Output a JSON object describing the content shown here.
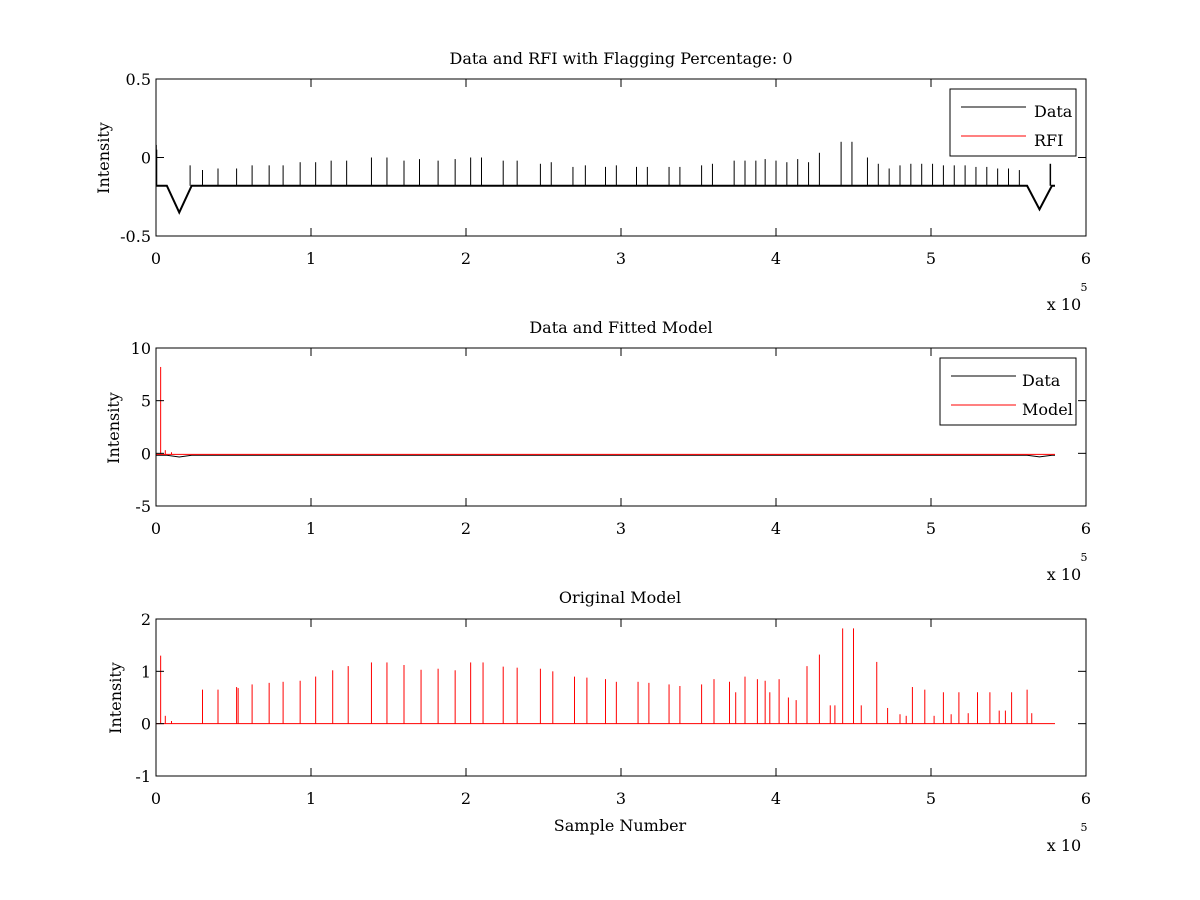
{
  "figure": {
    "background": "#ffffff"
  },
  "chart_data": [
    {
      "type": "line",
      "title": "Data and RFI with Flagging Percentage: 0",
      "xlabel": "",
      "ylabel": "Intensity",
      "xlim": [
        0,
        6
      ],
      "ylim": [
        -0.5,
        0.5
      ],
      "xticks": [
        "0",
        "1",
        "2",
        "3",
        "4",
        "5",
        "6"
      ],
      "yticks": [
        "-0.5",
        "0",
        "0.5"
      ],
      "ytick_values": [
        -0.5,
        0,
        0.5
      ],
      "x_multiplier": {
        "base": "x 10",
        "exp": "5"
      },
      "grid": false,
      "legend": {
        "placement": "top-right",
        "entries": [
          "Data",
          "RFI"
        ]
      },
      "series": [
        {
          "name": "Data",
          "color": "#000000",
          "baseline": -0.18,
          "spikes": [
            [
              0.002,
              0.08
            ],
            [
              0.005,
              0.05
            ],
            [
              0.22,
              -0.05
            ],
            [
              0.3,
              -0.08
            ],
            [
              0.4,
              -0.07
            ],
            [
              0.52,
              -0.07
            ],
            [
              0.62,
              -0.05
            ],
            [
              0.73,
              -0.05
            ],
            [
              0.82,
              -0.05
            ],
            [
              0.93,
              -0.03
            ],
            [
              1.03,
              -0.03
            ],
            [
              1.13,
              -0.02
            ],
            [
              1.23,
              -0.02
            ],
            [
              1.39,
              0.0
            ],
            [
              1.49,
              0.0
            ],
            [
              1.6,
              -0.02
            ],
            [
              1.7,
              -0.01
            ],
            [
              1.82,
              -0.02
            ],
            [
              1.93,
              -0.01
            ],
            [
              2.03,
              0.0
            ],
            [
              2.1,
              0.0
            ],
            [
              2.24,
              -0.02
            ],
            [
              2.33,
              -0.02
            ],
            [
              2.48,
              -0.04
            ],
            [
              2.55,
              -0.03
            ],
            [
              2.69,
              -0.06
            ],
            [
              2.77,
              -0.05
            ],
            [
              2.9,
              -0.06
            ],
            [
              2.97,
              -0.05
            ],
            [
              3.1,
              -0.06
            ],
            [
              3.17,
              -0.06
            ],
            [
              3.31,
              -0.06
            ],
            [
              3.38,
              -0.06
            ],
            [
              3.52,
              -0.05
            ],
            [
              3.59,
              -0.04
            ],
            [
              3.73,
              -0.02
            ],
            [
              3.8,
              -0.02
            ],
            [
              3.87,
              -0.02
            ],
            [
              3.93,
              -0.01
            ],
            [
              4.0,
              -0.02
            ],
            [
              4.07,
              -0.03
            ],
            [
              4.14,
              -0.01
            ],
            [
              4.21,
              -0.03
            ],
            [
              4.28,
              0.03
            ],
            [
              4.42,
              0.1
            ],
            [
              4.49,
              0.1
            ],
            [
              4.59,
              0.0
            ],
            [
              4.66,
              -0.04
            ],
            [
              4.73,
              -0.07
            ],
            [
              4.8,
              -0.05
            ],
            [
              4.87,
              -0.04
            ],
            [
              4.94,
              -0.04
            ],
            [
              5.01,
              -0.04
            ],
            [
              5.08,
              -0.05
            ],
            [
              5.15,
              -0.05
            ],
            [
              5.22,
              -0.05
            ],
            [
              5.29,
              -0.06
            ],
            [
              5.36,
              -0.06
            ],
            [
              5.43,
              -0.07
            ],
            [
              5.5,
              -0.07
            ],
            [
              5.57,
              -0.08
            ]
          ],
          "dips": [
            [
              0.15,
              -0.35
            ],
            [
              5.7,
              -0.33
            ]
          ],
          "end_spike": [
            5.77,
            -0.04
          ],
          "end_x": 5.8
        },
        {
          "name": "RFI",
          "color": "#ff0000",
          "values": []
        }
      ]
    },
    {
      "type": "line",
      "title": "Data and Fitted Model",
      "xlabel": "",
      "ylabel": "Intensity",
      "xlim": [
        0,
        6
      ],
      "ylim": [
        -5,
        10
      ],
      "xticks": [
        "0",
        "1",
        "2",
        "3",
        "4",
        "5",
        "6"
      ],
      "yticks": [
        "-5",
        "0",
        "5",
        "10"
      ],
      "ytick_values": [
        -5,
        0,
        5,
        10
      ],
      "x_multiplier": {
        "base": "x 10",
        "exp": "5"
      },
      "grid": false,
      "legend": {
        "placement": "top-right",
        "entries": [
          "Data",
          "Model"
        ]
      },
      "series": [
        {
          "name": "Data",
          "color": "#000000",
          "baseline": -0.18,
          "dips": [
            [
              0.15,
              -0.35
            ],
            [
              5.7,
              -0.33
            ]
          ],
          "end_x": 5.8
        },
        {
          "name": "Model",
          "color": "#ff0000",
          "baseline": -0.1,
          "spikes": [
            [
              0.03,
              8.2
            ],
            [
              0.06,
              0.3
            ],
            [
              0.1,
              0.1
            ]
          ],
          "end_x": 5.8
        }
      ]
    },
    {
      "type": "line",
      "title": "Original Model",
      "xlabel": "Sample Number",
      "ylabel": "Intensity",
      "xlim": [
        0,
        6
      ],
      "ylim": [
        -1,
        2
      ],
      "xticks": [
        "0",
        "1",
        "2",
        "3",
        "4",
        "5",
        "6"
      ],
      "yticks": [
        "-1",
        "0",
        "1",
        "2"
      ],
      "ytick_values": [
        -1,
        0,
        1,
        2
      ],
      "x_multiplier": {
        "base": "x 10",
        "exp": "5"
      },
      "grid": false,
      "series": [
        {
          "name": "",
          "color": "#ff0000",
          "baseline": 0,
          "spikes": [
            [
              0.03,
              1.3
            ],
            [
              0.06,
              0.15
            ],
            [
              0.1,
              0.05
            ],
            [
              0.3,
              0.65
            ],
            [
              0.4,
              0.65
            ],
            [
              0.52,
              0.7
            ],
            [
              0.53,
              0.68
            ],
            [
              0.62,
              0.75
            ],
            [
              0.73,
              0.78
            ],
            [
              0.82,
              0.8
            ],
            [
              0.93,
              0.82
            ],
            [
              1.03,
              0.9
            ],
            [
              1.14,
              1.02
            ],
            [
              1.24,
              1.1
            ],
            [
              1.39,
              1.17
            ],
            [
              1.49,
              1.17
            ],
            [
              1.6,
              1.12
            ],
            [
              1.71,
              1.03
            ],
            [
              1.82,
              1.05
            ],
            [
              1.93,
              1.02
            ],
            [
              2.03,
              1.17
            ],
            [
              2.11,
              1.17
            ],
            [
              2.24,
              1.09
            ],
            [
              2.33,
              1.07
            ],
            [
              2.48,
              1.05
            ],
            [
              2.56,
              1.0
            ],
            [
              2.7,
              0.9
            ],
            [
              2.78,
              0.88
            ],
            [
              2.9,
              0.85
            ],
            [
              2.97,
              0.8
            ],
            [
              3.11,
              0.8
            ],
            [
              3.18,
              0.78
            ],
            [
              3.31,
              0.75
            ],
            [
              3.38,
              0.72
            ],
            [
              3.52,
              0.75
            ],
            [
              3.6,
              0.85
            ],
            [
              3.7,
              0.8
            ],
            [
              3.74,
              0.6
            ],
            [
              3.8,
              0.9
            ],
            [
              3.88,
              0.85
            ],
            [
              3.93,
              0.82
            ],
            [
              3.96,
              0.6
            ],
            [
              4.02,
              0.85
            ],
            [
              4.08,
              0.5
            ],
            [
              4.13,
              0.45
            ],
            [
              4.2,
              1.1
            ],
            [
              4.28,
              1.32
            ],
            [
              4.35,
              0.35
            ],
            [
              4.38,
              0.35
            ],
            [
              4.43,
              1.82
            ],
            [
              4.5,
              1.82
            ],
            [
              4.55,
              0.35
            ],
            [
              4.65,
              1.18
            ],
            [
              4.72,
              0.3
            ],
            [
              4.8,
              0.18
            ],
            [
              4.84,
              0.15
            ],
            [
              4.88,
              0.7
            ],
            [
              4.96,
              0.65
            ],
            [
              5.02,
              0.15
            ],
            [
              5.08,
              0.6
            ],
            [
              5.13,
              0.18
            ],
            [
              5.18,
              0.6
            ],
            [
              5.24,
              0.2
            ],
            [
              5.3,
              0.6
            ],
            [
              5.38,
              0.6
            ],
            [
              5.44,
              0.25
            ],
            [
              5.48,
              0.25
            ],
            [
              5.52,
              0.6
            ],
            [
              5.62,
              0.65
            ],
            [
              5.65,
              0.2
            ]
          ],
          "end_x": 5.8
        }
      ]
    }
  ]
}
